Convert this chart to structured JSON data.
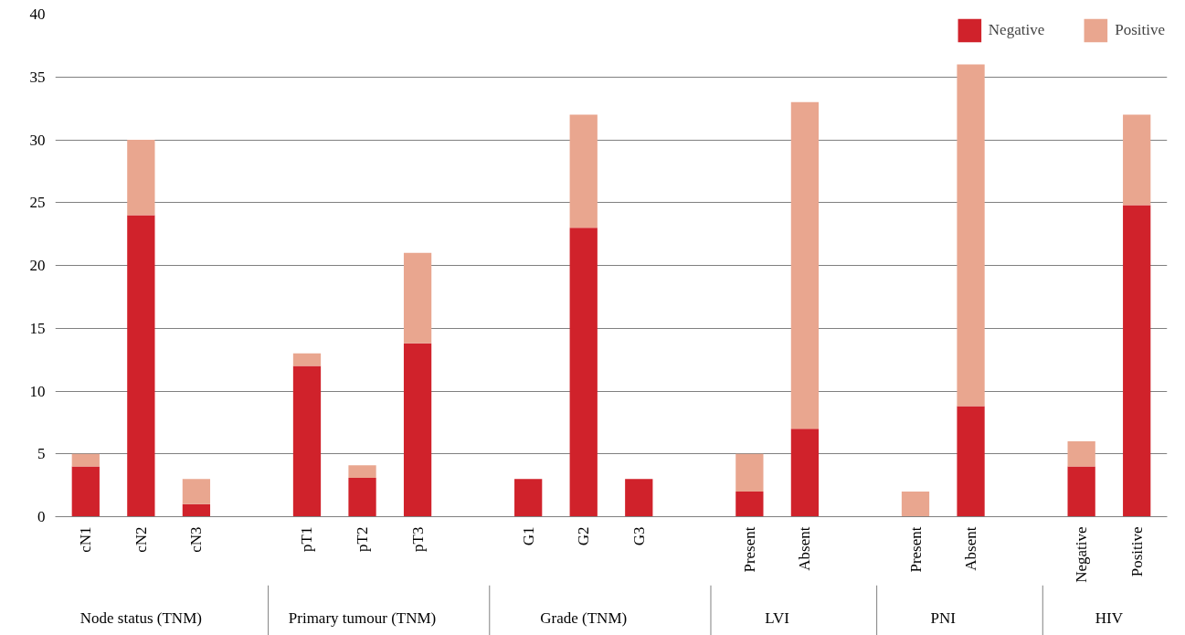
{
  "chart_data": {
    "type": "bar",
    "stacked": true,
    "categories": [
      "cN1",
      "cN2",
      "cN3",
      "pT1",
      "pT2",
      "pT3",
      "G1",
      "G2",
      "G3",
      "Present",
      "Absent",
      "Present",
      "Absent",
      "Negative",
      "Positive"
    ],
    "series": [
      {
        "name": "Negative",
        "color": "#d0222b",
        "values": [
          4,
          24,
          1,
          12,
          3.1,
          13.8,
          3,
          23,
          3,
          2,
          7,
          0,
          8.8,
          4,
          24.8
        ]
      },
      {
        "name": "Positive",
        "color": "#e9a68f",
        "values": [
          1,
          6,
          2,
          1,
          1,
          7.2,
          0,
          9,
          0,
          3,
          26,
          2,
          27.2,
          2,
          7.2
        ]
      }
    ],
    "annotations": [
      "Node status (TNM)",
      "Primary tumour (TNM)",
      "Grade (TNM)",
      "LVI",
      "PNI",
      "HIV"
    ],
    "ylim": [
      0,
      40
    ],
    "yticks": [
      0,
      5,
      10,
      15,
      20,
      25,
      30,
      35,
      40
    ],
    "grid": "y",
    "legend": "top right"
  }
}
